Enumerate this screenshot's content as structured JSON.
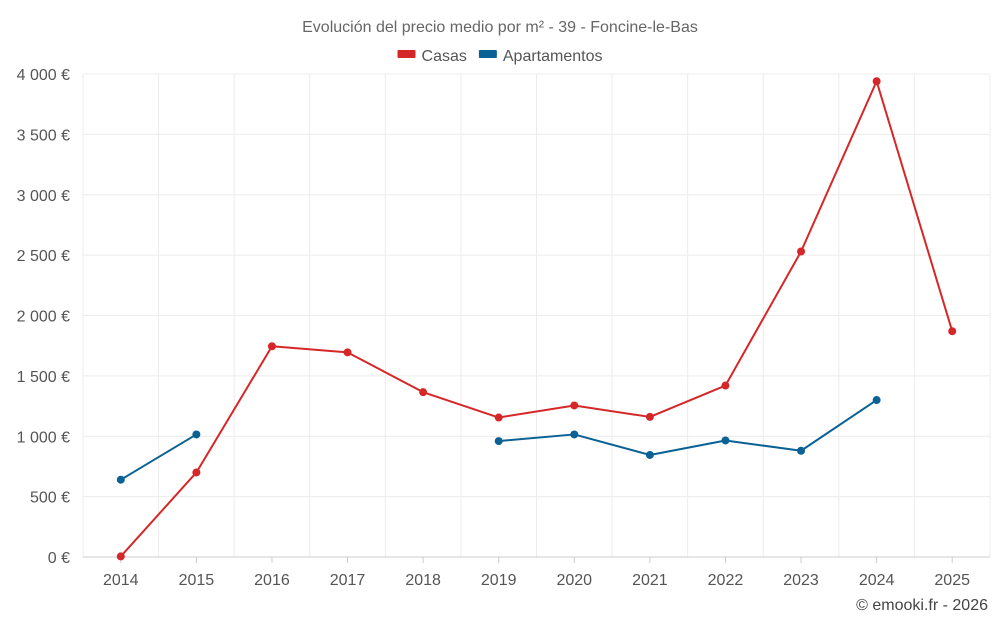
{
  "chart_data": {
    "type": "line",
    "title": "Evolución del precio medio por m² - 39 - Foncine-le-Bas",
    "categories": [
      "2014",
      "2015",
      "2016",
      "2017",
      "2018",
      "2019",
      "2020",
      "2021",
      "2022",
      "2023",
      "2024",
      "2025"
    ],
    "y_ticks": [
      "0 €",
      "500 €",
      "1 000 €",
      "1 500 €",
      "2 000 €",
      "2 500 €",
      "3 000 €",
      "3 500 €",
      "4 000 €"
    ],
    "ylim": [
      0,
      4000
    ],
    "grid": true,
    "legend_position": "top-center",
    "series": [
      {
        "name": "Casas",
        "color": "#d62728",
        "values": [
          5,
          700,
          1745,
          1695,
          1365,
          1155,
          1255,
          1160,
          1420,
          2530,
          3940,
          1870
        ]
      },
      {
        "name": "Apartamentos",
        "color": "#0a6195",
        "values": [
          640,
          1015,
          null,
          null,
          null,
          960,
          1015,
          845,
          965,
          880,
          1300,
          null
        ]
      }
    ]
  },
  "credit": "© emooki.fr - 2026"
}
